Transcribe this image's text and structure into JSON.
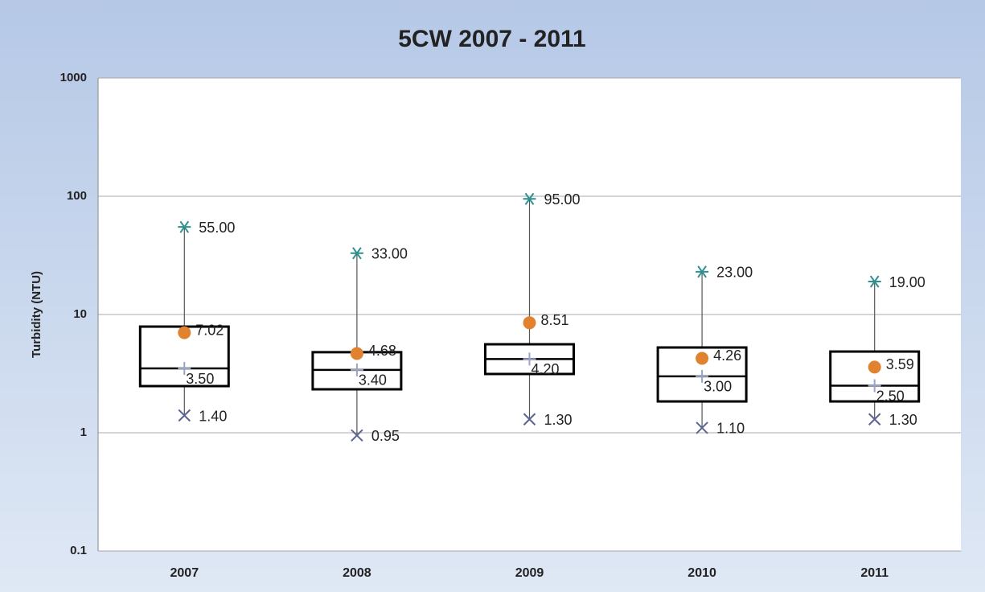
{
  "chart_data": {
    "type": "box",
    "title": "5CW 2007 - 2011",
    "y_label": "Turbidity (NTU)",
    "categories": [
      "2007",
      "2008",
      "2009",
      "2010",
      "2011"
    ],
    "log_scale": true,
    "grid": true,
    "ylim": [
      0.1,
      1000
    ],
    "yticks": [
      0.1,
      1,
      10,
      100,
      1000
    ],
    "box_color": "#000000",
    "q1": [
      2.48,
      2.33,
      3.14,
      1.84,
      1.84
    ],
    "q3": [
      7.9,
      4.8,
      5.6,
      5.26,
      4.86
    ],
    "max": {
      "color": "#2f8f8f",
      "values": [
        55,
        33,
        95,
        23,
        19
      ],
      "value_labels": [
        "55.00",
        "33.00",
        "95.00",
        "23.00",
        "19.00"
      ]
    },
    "mean": {
      "color": "#e0822e",
      "values": [
        7.02,
        4.68,
        8.51,
        4.26,
        3.59
      ],
      "value_labels": [
        "7.02",
        "4.68",
        "8.51",
        "4.26",
        "3.59"
      ]
    },
    "median": {
      "color": "#9aa3c8",
      "values": [
        3.5,
        3.4,
        4.2,
        3.0,
        2.5
      ],
      "value_labels": [
        "3.50",
        "3.40",
        "4.20",
        "3.00",
        "2.50"
      ]
    },
    "min": {
      "color": "#5a6490",
      "values": [
        1.4,
        0.95,
        1.3,
        1.1,
        1.3
      ],
      "value_labels": [
        "1.40",
        "0.95",
        "1.30",
        "1.10",
        "1.30"
      ]
    }
  }
}
